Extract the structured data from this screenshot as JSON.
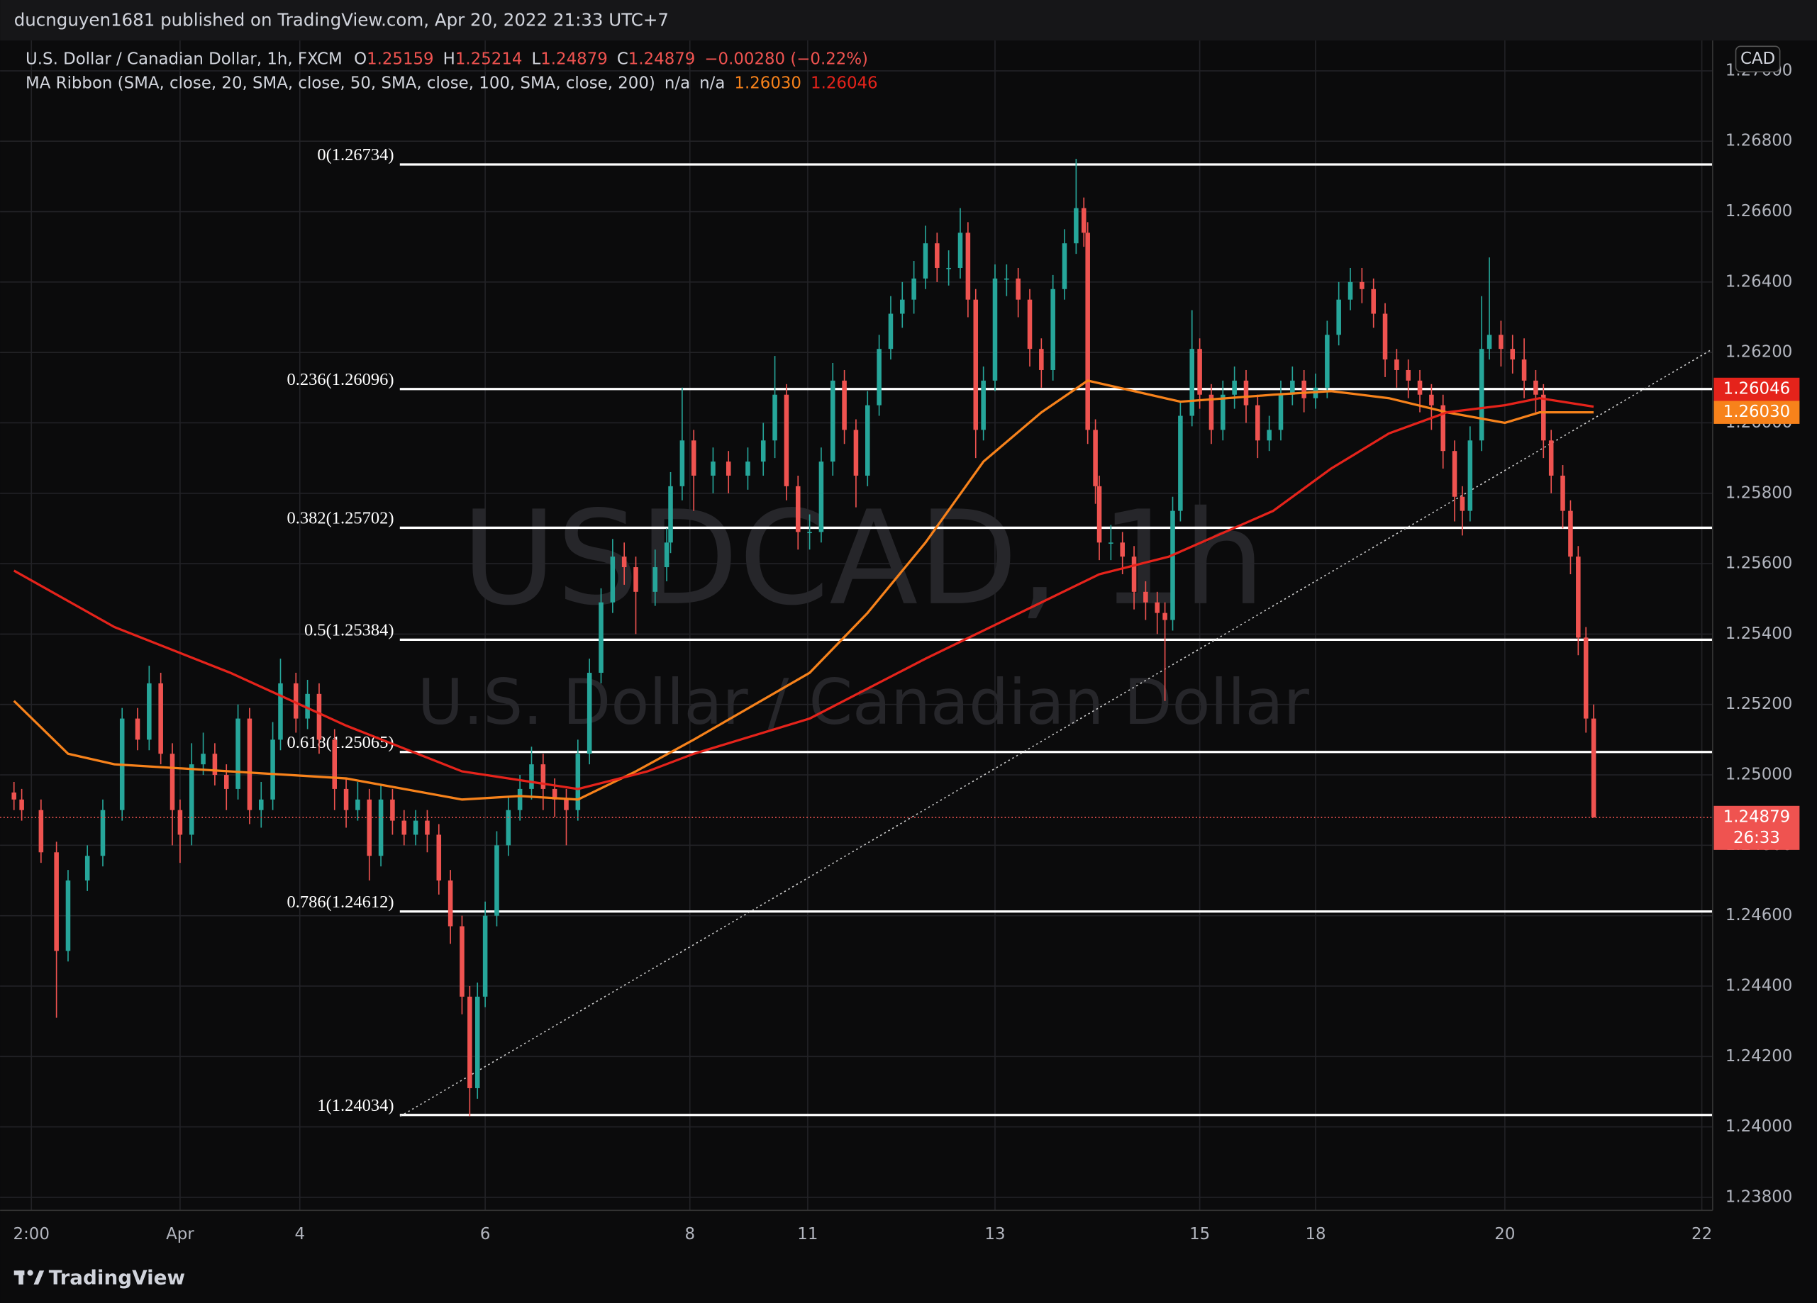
{
  "header": {
    "published": "ducnguyen1681 published on TradingView.com, Apr 20, 2022 21:33 UTC+7"
  },
  "footer": {
    "brand": "TradingView"
  },
  "chart_data": {
    "type": "candlestick",
    "title": "USDCAD, 1h",
    "subtitle": "U.S. Dollar / Canadian Dollar",
    "legend": {
      "symbol": "U.S. Dollar / Canadian Dollar, 1h, FXCM",
      "ohlc": [
        {
          "key": "O",
          "value": "1.25159"
        },
        {
          "key": "H",
          "value": "1.25214"
        },
        {
          "key": "L",
          "value": "1.24879"
        },
        {
          "key": "C",
          "value": "1.24879"
        }
      ],
      "change": "−0.00280 (−0.22%)",
      "indicator": "MA Ribbon (SMA, close, 20, SMA, close, 50, SMA, close, 100, SMA, close, 200)",
      "na": [
        "n/a",
        "n/a"
      ]
    },
    "currency": "CAD",
    "countdown": "26:33",
    "x": [
      0,
      2,
      7,
      11,
      14,
      19,
      23,
      28,
      32,
      35,
      38,
      41,
      43,
      46,
      49,
      52,
      55,
      58,
      61,
      64,
      67,
      69,
      73,
      76,
      79,
      83,
      86,
      89,
      92,
      95,
      98,
      101,
      104,
      107,
      110,
      113,
      116,
      118,
      120,
      122,
      125,
      128,
      131,
      134,
      137,
      140,
      143,
      146,
      149,
      152,
      155,
      158,
      161,
      166,
      169,
      170,
      173,
      176,
      181,
      185,
      190,
      194,
      197,
      200,
      203,
      206,
      209,
      212,
      215,
      218,
      221,
      224,
      227,
      230,
      233,
      236,
      239,
      242,
      245,
      247,
      249,
      251,
      254,
      257,
      260,
      263,
      266,
      269,
      272,
      275,
      277,
      278,
      280,
      281,
      284,
      287,
      290,
      293,
      296,
      298,
      300,
      302,
      305,
      307,
      310,
      313,
      316,
      319,
      322,
      325,
      328,
      331,
      334,
      337,
      340,
      343,
      346,
      349,
      352,
      355,
      358,
      361,
      364,
      367,
      370,
      373,
      375,
      377,
      380,
      382,
      385,
      388,
      391,
      394,
      396,
      398,
      401,
      403,
      405,
      407,
      409
    ],
    "open": [
      1.2495,
      1.2493,
      1.249,
      1.2478,
      1.245,
      1.247,
      1.2477,
      1.249,
      1.2516,
      1.251,
      1.2526,
      1.2506,
      1.249,
      1.2483,
      1.2503,
      1.2506,
      1.25,
      1.2496,
      1.2516,
      1.249,
      1.2493,
      1.251,
      1.2526,
      1.2516,
      1.2523,
      1.251,
      1.2496,
      1.249,
      1.2493,
      1.2477,
      1.2493,
      1.2487,
      1.2483,
      1.2487,
      1.2483,
      1.247,
      1.2457,
      1.2437,
      1.2411,
      1.2437,
      1.246,
      1.248,
      1.249,
      1.2496,
      1.2503,
      1.2496,
      1.2493,
      1.249,
      1.2506,
      1.2529,
      1.2549,
      1.2562,
      1.2559,
      1.2552,
      1.2559,
      1.2566,
      1.2582,
      1.2595,
      1.2585,
      1.2589,
      1.2585,
      1.2589,
      1.2595,
      1.2608,
      1.2582,
      1.2569,
      1.2569,
      1.2589,
      1.2612,
      1.2598,
      1.2585,
      1.2605,
      1.2621,
      1.2631,
      1.2635,
      1.2641,
      1.2651,
      1.2644,
      1.2644,
      1.2654,
      1.2635,
      1.2598,
      1.2612,
      1.2641,
      1.2641,
      1.2635,
      1.2621,
      1.2615,
      1.2638,
      1.2651,
      1.2661,
      1.2654,
      1.2598,
      1.2582,
      1.2566,
      1.2566,
      1.2562,
      1.2552,
      1.2549,
      1.2546,
      1.2544,
      1.2575,
      1.2602,
      1.2621,
      1.2608,
      1.2598,
      1.2608,
      1.2612,
      1.2605,
      1.2595,
      1.2598,
      1.2608,
      1.2612,
      1.2607,
      1.261,
      1.2625,
      1.2635,
      1.264,
      1.2638,
      1.2631,
      1.2618,
      1.2615,
      1.2612,
      1.2608,
      1.2605,
      1.2592,
      1.2579,
      1.2575,
      1.2595,
      1.2621,
      1.2625,
      1.2621,
      1.2618,
      1.2612,
      1.2608,
      1.2595,
      1.2585,
      1.2575,
      1.2562,
      1.2539,
      1.2516
    ],
    "high": [
      1.2498,
      1.2496,
      1.2493,
      1.2481,
      1.2473,
      1.248,
      1.2493,
      1.2519,
      1.2519,
      1.2531,
      1.2529,
      1.2509,
      1.2493,
      1.2509,
      1.2512,
      1.2509,
      1.2503,
      1.252,
      1.2519,
      1.2498,
      1.2515,
      1.2533,
      1.2529,
      1.2527,
      1.2526,
      1.2513,
      1.2499,
      1.2498,
      1.2496,
      1.2497,
      1.2496,
      1.249,
      1.249,
      1.249,
      1.2486,
      1.2473,
      1.246,
      1.244,
      1.2441,
      1.2464,
      1.2484,
      1.2494,
      1.25,
      1.2508,
      1.2506,
      1.2499,
      1.2496,
      1.251,
      1.2533,
      1.2553,
      1.2567,
      1.2566,
      1.2562,
      1.2564,
      1.257,
      1.2586,
      1.261,
      1.2598,
      1.2593,
      1.2592,
      1.2593,
      1.26,
      1.2619,
      1.2611,
      1.2585,
      1.2574,
      1.2593,
      1.2617,
      1.2615,
      1.2601,
      1.2609,
      1.2625,
      1.2636,
      1.264,
      1.2646,
      1.2656,
      1.2654,
      1.2649,
      1.2661,
      1.2657,
      1.2638,
      1.2616,
      1.2645,
      1.2645,
      1.2644,
      1.2638,
      1.2624,
      1.2642,
      1.2655,
      1.2675,
      1.2664,
      1.2657,
      1.2601,
      1.2585,
      1.2571,
      1.2569,
      1.2565,
      1.2555,
      1.2552,
      1.2549,
      1.2579,
      1.2606,
      1.2632,
      1.2624,
      1.2611,
      1.2612,
      1.2616,
      1.2615,
      1.2608,
      1.2602,
      1.2612,
      1.2616,
      1.2615,
      1.2614,
      1.2629,
      1.264,
      1.2644,
      1.2644,
      1.2641,
      1.2634,
      1.2621,
      1.2618,
      1.2615,
      1.2611,
      1.2608,
      1.2595,
      1.2582,
      1.2599,
      1.2636,
      1.2647,
      1.2629,
      1.2625,
      1.2624,
      1.2615,
      1.2611,
      1.2598,
      1.2588,
      1.2578,
      1.2565,
      1.2542,
      1.252
    ],
    "low": [
      1.249,
      1.2487,
      1.2475,
      1.2431,
      1.2447,
      1.2467,
      1.2474,
      1.2487,
      1.2507,
      1.2507,
      1.2503,
      1.248,
      1.2475,
      1.248,
      1.25,
      1.2497,
      1.249,
      1.2493,
      1.2486,
      1.2485,
      1.249,
      1.2507,
      1.2512,
      1.2513,
      1.2506,
      1.249,
      1.2485,
      1.2487,
      1.247,
      1.2474,
      1.2483,
      1.248,
      1.248,
      1.2478,
      1.2466,
      1.2452,
      1.2432,
      1.2403,
      1.2408,
      1.2434,
      1.2457,
      1.2477,
      1.2487,
      1.2493,
      1.249,
      1.2488,
      1.248,
      1.2487,
      1.2503,
      1.2526,
      1.2546,
      1.2554,
      1.254,
      1.2548,
      1.2555,
      1.2563,
      1.2578,
      1.2575,
      1.258,
      1.258,
      1.2581,
      1.2585,
      1.259,
      1.2578,
      1.2564,
      1.2564,
      1.2566,
      1.2585,
      1.2594,
      1.2576,
      1.2582,
      1.2602,
      1.2618,
      1.2627,
      1.2631,
      1.2638,
      1.264,
      1.2639,
      1.2641,
      1.263,
      1.259,
      1.2595,
      1.2609,
      1.2636,
      1.263,
      1.2616,
      1.261,
      1.2612,
      1.2635,
      1.2648,
      1.265,
      1.2594,
      1.2577,
      1.2561,
      1.2561,
      1.2557,
      1.2547,
      1.2544,
      1.254,
      1.2521,
      1.2541,
      1.2572,
      1.2599,
      1.2604,
      1.2594,
      1.2595,
      1.2604,
      1.26,
      1.259,
      1.2592,
      1.2595,
      1.2605,
      1.2603,
      1.2604,
      1.2607,
      1.2622,
      1.2632,
      1.2634,
      1.2627,
      1.2613,
      1.261,
      1.2607,
      1.2603,
      1.2598,
      1.2587,
      1.2572,
      1.2568,
      1.2572,
      1.2592,
      1.2618,
      1.2616,
      1.2614,
      1.2607,
      1.2603,
      1.259,
      1.258,
      1.257,
      1.2557,
      1.2534,
      1.2512,
      1.24879
    ],
    "close": [
      1.2493,
      1.249,
      1.2478,
      1.245,
      1.247,
      1.2477,
      1.249,
      1.2516,
      1.251,
      1.2526,
      1.2506,
      1.249,
      1.2483,
      1.2503,
      1.2506,
      1.25,
      1.2496,
      1.2516,
      1.249,
      1.2493,
      1.251,
      1.2526,
      1.2516,
      1.2523,
      1.251,
      1.2496,
      1.249,
      1.2493,
      1.2477,
      1.2493,
      1.2487,
      1.2483,
      1.2487,
      1.2483,
      1.247,
      1.2457,
      1.2437,
      1.2411,
      1.2437,
      1.246,
      1.248,
      1.249,
      1.2496,
      1.2503,
      1.2496,
      1.2493,
      1.249,
      1.2506,
      1.2529,
      1.2549,
      1.2562,
      1.2559,
      1.2552,
      1.2559,
      1.2566,
      1.2582,
      1.2595,
      1.2585,
      1.2589,
      1.2585,
      1.2589,
      1.2595,
      1.2608,
      1.2582,
      1.2569,
      1.2569,
      1.2589,
      1.2612,
      1.2598,
      1.2585,
      1.2605,
      1.2621,
      1.2631,
      1.2635,
      1.2641,
      1.2651,
      1.2644,
      1.2644,
      1.2654,
      1.2635,
      1.2598,
      1.2612,
      1.2641,
      1.2641,
      1.2635,
      1.2621,
      1.2615,
      1.2638,
      1.2651,
      1.2661,
      1.2654,
      1.2598,
      1.2582,
      1.2566,
      1.2566,
      1.2562,
      1.2552,
      1.2549,
      1.2546,
      1.2544,
      1.2575,
      1.2602,
      1.2621,
      1.2608,
      1.2598,
      1.2608,
      1.2612,
      1.2605,
      1.2595,
      1.2598,
      1.2608,
      1.2612,
      1.2607,
      1.261,
      1.2625,
      1.2635,
      1.264,
      1.2638,
      1.2631,
      1.2618,
      1.2615,
      1.2612,
      1.2608,
      1.2605,
      1.2592,
      1.2579,
      1.2575,
      1.2595,
      1.2621,
      1.2625,
      1.2621,
      1.2618,
      1.2612,
      1.2608,
      1.2595,
      1.2585,
      1.2575,
      1.2562,
      1.2539,
      1.2516,
      1.24879
    ],
    "up_color": "#26a69a",
    "down_color": "#ef5350",
    "ma": [
      {
        "color": "#f7821b",
        "last_value_label": "1.26030",
        "x": [
          0,
          14,
          26,
          56,
          86,
          116,
          131,
          146,
          161,
          176,
          206,
          221,
          236,
          251,
          266,
          278,
          290,
          302,
          326,
          341,
          356,
          371,
          386,
          395,
          409
        ],
        "values": [
          1.2521,
          1.2506,
          1.2503,
          1.2501,
          1.2499,
          1.2493,
          1.2494,
          1.2493,
          1.2501,
          1.251,
          1.2529,
          1.2546,
          1.2566,
          1.2589,
          1.2603,
          1.2612,
          1.2609,
          1.2606,
          1.2608,
          1.2609,
          1.2607,
          1.2603,
          1.26,
          1.2603,
          1.2603
        ]
      },
      {
        "color": "#e5231b",
        "last_value_label": "1.26046",
        "x": [
          0,
          26,
          56,
          86,
          116,
          146,
          164,
          176,
          206,
          236,
          266,
          281,
          299,
          326,
          341,
          356,
          371,
          386,
          395,
          409
        ],
        "values": [
          1.2558,
          1.2542,
          1.2529,
          1.2514,
          1.2501,
          1.2496,
          1.2501,
          1.2506,
          1.2516,
          1.2533,
          1.2549,
          1.2557,
          1.2562,
          1.2575,
          1.2587,
          1.2597,
          1.2603,
          1.2605,
          1.2607,
          1.26046
        ]
      }
    ],
    "fib": [
      {
        "value": 1.26734,
        "label": "0(1.26734)"
      },
      {
        "value": 1.26096,
        "label": "0.236(1.26096)"
      },
      {
        "value": 1.25702,
        "label": "0.382(1.25702)"
      },
      {
        "value": 1.25384,
        "label": "0.5(1.25384)"
      },
      {
        "value": 1.25065,
        "label": "0.618(1.25065)"
      },
      {
        "value": 1.24612,
        "label": "0.786(1.24612)"
      },
      {
        "value": 1.24034,
        "label": "1(1.24034)"
      }
    ],
    "fib_color": "#ffffff",
    "trendline": {
      "x": [
        100,
        439.8
      ],
      "values": [
        1.2403,
        1.2621
      ]
    },
    "xlim": [
      -3.6,
      439.8
    ],
    "xticks": [
      {
        "value": 4.5,
        "label": "2:00"
      },
      {
        "value": 43,
        "label": "Apr"
      },
      {
        "value": 74,
        "label": "4"
      },
      {
        "value": 122,
        "label": "6"
      },
      {
        "value": 175,
        "label": "8"
      },
      {
        "value": 205.5,
        "label": "11"
      },
      {
        "value": 254,
        "label": "13"
      },
      {
        "value": 307,
        "label": "15"
      },
      {
        "value": 337,
        "label": "18"
      },
      {
        "value": 386,
        "label": "20"
      },
      {
        "value": 437,
        "label": "22"
      }
    ],
    "ylim": [
      1.23763,
      1.27086
    ],
    "yticks": [
      {
        "value": 1.238,
        "label": "1.23800"
      },
      {
        "value": 1.24,
        "label": "1.24000"
      },
      {
        "value": 1.242,
        "label": "1.24200"
      },
      {
        "value": 1.244,
        "label": "1.24400"
      },
      {
        "value": 1.246,
        "label": "1.24600"
      },
      {
        "value": 1.248,
        "label": "1.24800"
      },
      {
        "value": 1.25,
        "label": "1.25000"
      },
      {
        "value": 1.252,
        "label": "1.25200"
      },
      {
        "value": 1.254,
        "label": "1.25400"
      },
      {
        "value": 1.256,
        "label": "1.25600"
      },
      {
        "value": 1.258,
        "label": "1.25800"
      },
      {
        "value": 1.26,
        "label": "1.26000"
      },
      {
        "value": 1.262,
        "label": "1.26200"
      },
      {
        "value": 1.264,
        "label": "1.26400"
      },
      {
        "value": 1.266,
        "label": "1.26600"
      },
      {
        "value": 1.268,
        "label": "1.26800"
      },
      {
        "value": 1.27,
        "label": "1.27000"
      }
    ],
    "grid": true
  }
}
